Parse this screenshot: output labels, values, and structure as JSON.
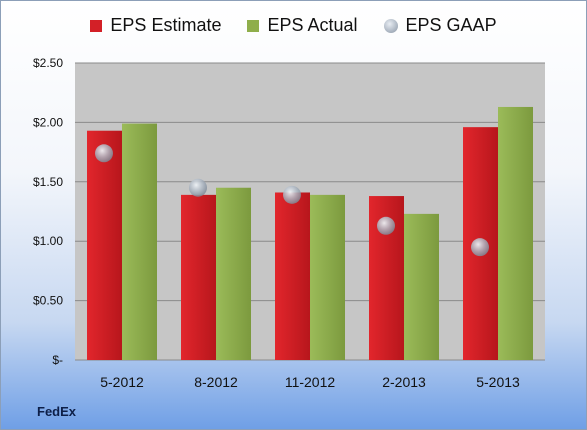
{
  "legend": {
    "estimate": "EPS Estimate",
    "actual": "EPS Actual",
    "gaap": "EPS GAAP"
  },
  "company": "FedEx",
  "colors": {
    "estimate": "#d32027",
    "actual": "#8fae4b",
    "gaap": "#a7b1bd",
    "plot_bg": "#c6c6c6"
  },
  "chart_data": {
    "type": "bar",
    "categories": [
      "5-2012",
      "8-2012",
      "11-2012",
      "2-2013",
      "5-2013"
    ],
    "series": [
      {
        "name": "EPS Estimate",
        "type": "bar",
        "values": [
          1.93,
          1.39,
          1.41,
          1.38,
          1.96
        ]
      },
      {
        "name": "EPS Actual",
        "type": "bar",
        "values": [
          1.99,
          1.45,
          1.39,
          1.23,
          2.13
        ]
      },
      {
        "name": "EPS GAAP",
        "type": "scatter",
        "values": [
          1.74,
          1.45,
          1.39,
          1.13,
          0.95
        ]
      }
    ],
    "yticks": [
      {
        "value": 0,
        "label": "$-"
      },
      {
        "value": 0.5,
        "label": "$0.50"
      },
      {
        "value": 1.0,
        "label": "$1.00"
      },
      {
        "value": 1.5,
        "label": "$1.50"
      },
      {
        "value": 2.0,
        "label": "$2.00"
      },
      {
        "value": 2.5,
        "label": "$2.50"
      }
    ],
    "ylim": [
      0,
      2.5
    ],
    "grid": true,
    "legend_position": "top"
  }
}
